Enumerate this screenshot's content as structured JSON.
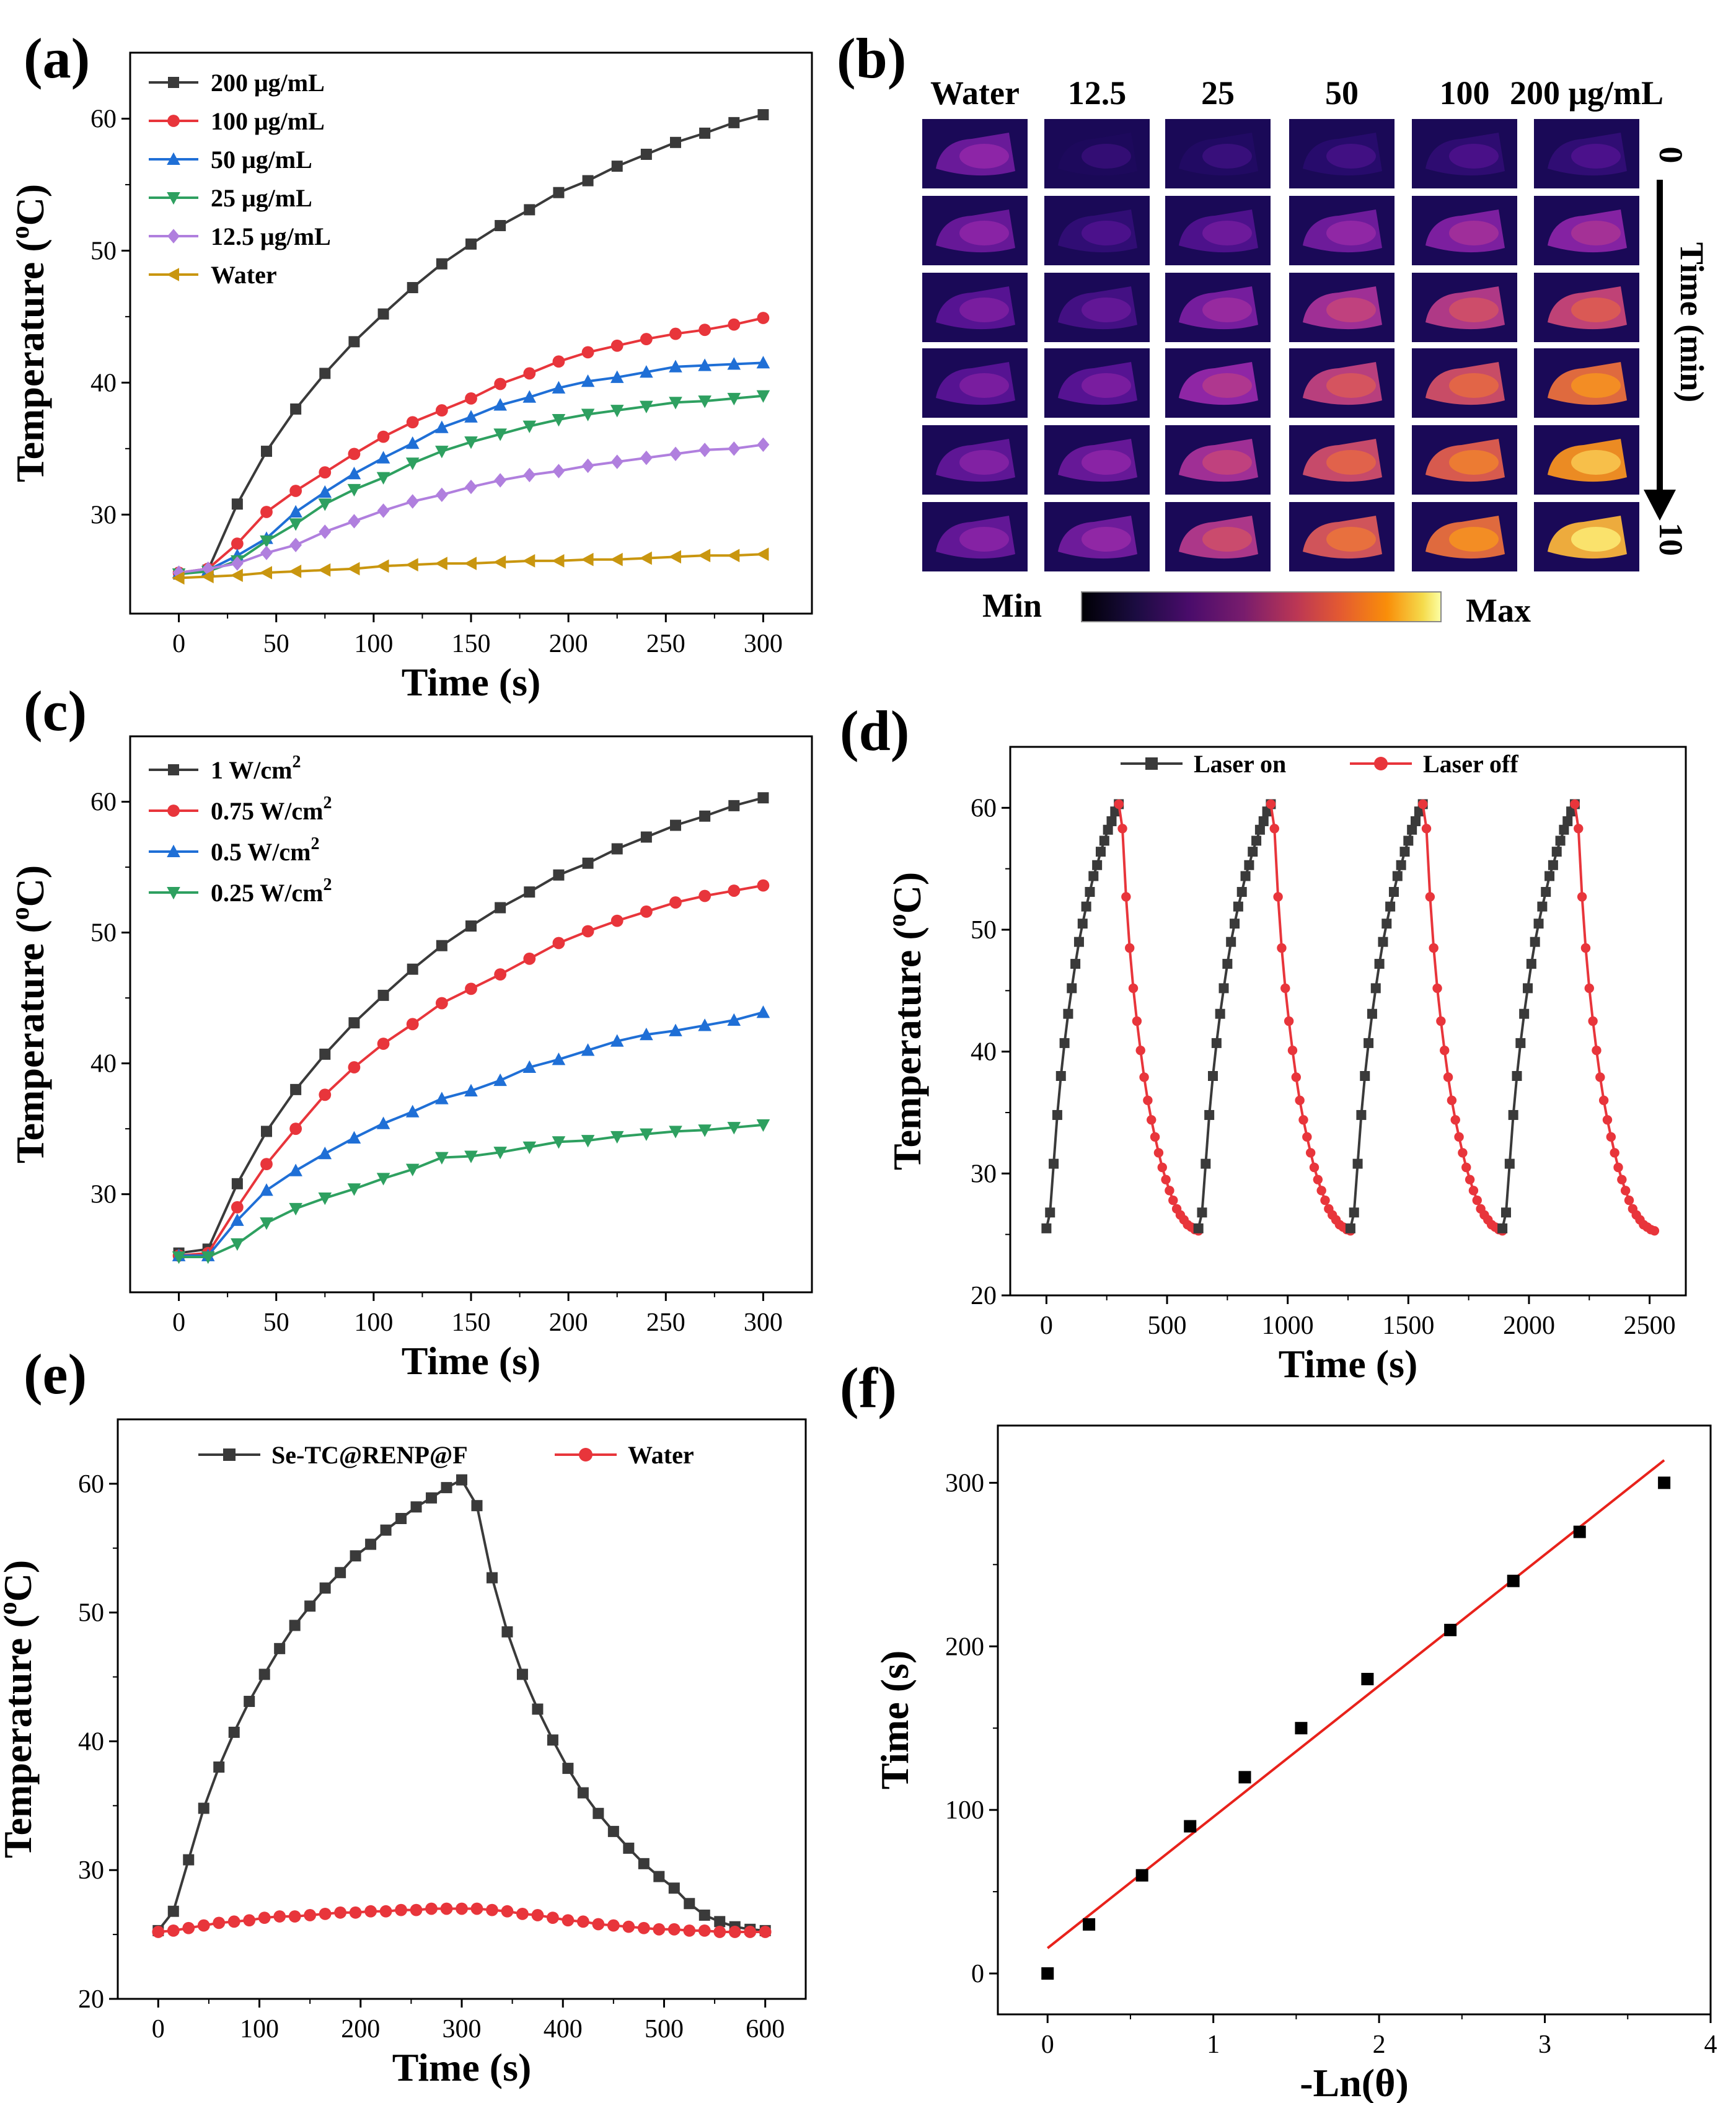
{
  "colors": {
    "black": "#3a3a3a",
    "red": "#e8353b",
    "blue": "#1f6fd6",
    "green": "#2ea060",
    "purple": "#b07fde",
    "gold": "#c9960f",
    "fit": "#e8221b"
  },
  "chart_data": [
    {
      "panel": "(a)",
      "type": "line",
      "xlabel": "Time (s)",
      "ylabel": "Temperature (",
      "ylabel_sup": "o",
      "ylabel_tail": "C)",
      "xlim": [
        -25,
        325
      ],
      "ylim": [
        22.5,
        65
      ],
      "xticks": [
        0,
        50,
        100,
        150,
        200,
        250,
        300
      ],
      "yticks": [
        30,
        40,
        50,
        60
      ],
      "x": [
        0,
        15,
        30,
        45,
        60,
        75,
        90,
        105,
        120,
        135,
        150,
        165,
        180,
        195,
        210,
        225,
        240,
        255,
        270,
        285,
        300
      ],
      "legend_position": "top-left",
      "series": [
        {
          "name": "200 μg/mL",
          "color": "#3a3a3a",
          "marker": "square",
          "values": [
            25.5,
            25.8,
            30.8,
            34.8,
            38.0,
            40.7,
            43.1,
            45.2,
            47.2,
            49.0,
            50.5,
            51.9,
            53.1,
            54.4,
            55.3,
            56.4,
            57.3,
            58.2,
            58.9,
            59.7,
            60.3
          ]
        },
        {
          "name": "100 μg/mL",
          "color": "#e8353b",
          "marker": "circle",
          "values": [
            25.6,
            25.9,
            27.8,
            30.2,
            31.8,
            33.2,
            34.6,
            35.9,
            37.0,
            37.9,
            38.8,
            39.9,
            40.7,
            41.6,
            42.3,
            42.8,
            43.3,
            43.7,
            44.0,
            44.4,
            44.9
          ]
        },
        {
          "name": "50 μg/mL",
          "color": "#1f6fd6",
          "marker": "triangle-up",
          "values": [
            25.6,
            25.8,
            26.9,
            28.2,
            30.2,
            31.7,
            33.1,
            34.3,
            35.4,
            36.6,
            37.4,
            38.3,
            38.9,
            39.6,
            40.1,
            40.4,
            40.8,
            41.2,
            41.3,
            41.4,
            41.5
          ]
        },
        {
          "name": "25 μg/mL",
          "color": "#2ea060",
          "marker": "triangle-down",
          "values": [
            25.5,
            25.7,
            26.5,
            28.0,
            29.3,
            30.8,
            31.9,
            32.8,
            33.9,
            34.8,
            35.5,
            36.1,
            36.7,
            37.2,
            37.6,
            37.9,
            38.2,
            38.5,
            38.6,
            38.8,
            39.0
          ]
        },
        {
          "name": "12.5 μg/mL",
          "color": "#b07fde",
          "marker": "diamond",
          "values": [
            25.6,
            25.9,
            26.3,
            27.1,
            27.7,
            28.7,
            29.5,
            30.3,
            31.0,
            31.5,
            32.1,
            32.6,
            33.0,
            33.3,
            33.7,
            34.0,
            34.3,
            34.6,
            34.9,
            35.0,
            35.3
          ]
        },
        {
          "name": "Water",
          "color": "#c9960f",
          "marker": "triangle-left",
          "values": [
            25.2,
            25.3,
            25.4,
            25.6,
            25.7,
            25.8,
            25.9,
            26.1,
            26.2,
            26.3,
            26.3,
            26.4,
            26.5,
            26.5,
            26.6,
            26.6,
            26.7,
            26.8,
            26.9,
            26.9,
            27.0
          ]
        }
      ]
    },
    {
      "panel": "(c)",
      "type": "line",
      "xlabel": "Time (s)",
      "ylabel": "Temperature (",
      "ylabel_sup": "o",
      "ylabel_tail": "C)",
      "xlim": [
        -25,
        325
      ],
      "ylim": [
        22.5,
        65
      ],
      "xticks": [
        0,
        50,
        100,
        150,
        200,
        250,
        300
      ],
      "yticks": [
        30,
        40,
        50,
        60
      ],
      "x": [
        0,
        15,
        30,
        45,
        60,
        75,
        90,
        105,
        120,
        135,
        150,
        165,
        180,
        195,
        210,
        225,
        240,
        255,
        270,
        285,
        300
      ],
      "legend_position": "top-left",
      "series": [
        {
          "name": "1 W/cm",
          "name_sup": "2",
          "color": "#3a3a3a",
          "marker": "square",
          "values": [
            25.5,
            25.8,
            30.8,
            34.8,
            38.0,
            40.7,
            43.1,
            45.2,
            47.2,
            49.0,
            50.5,
            51.9,
            53.1,
            54.4,
            55.3,
            56.4,
            57.3,
            58.2,
            58.9,
            59.7,
            60.3
          ]
        },
        {
          "name": "0.75 W/cm",
          "name_sup": "2",
          "color": "#e8353b",
          "marker": "circle",
          "values": [
            25.3,
            25.5,
            29.0,
            32.3,
            35.0,
            37.6,
            39.7,
            41.5,
            43.0,
            44.6,
            45.7,
            46.8,
            48.0,
            49.2,
            50.1,
            50.9,
            51.6,
            52.3,
            52.8,
            53.2,
            53.6
          ]
        },
        {
          "name": "0.5 W/cm",
          "name_sup": "2",
          "color": "#1f6fd6",
          "marker": "triangle-up",
          "values": [
            25.3,
            25.3,
            28.0,
            30.3,
            31.8,
            33.1,
            34.3,
            35.4,
            36.3,
            37.3,
            37.9,
            38.7,
            39.7,
            40.3,
            41.0,
            41.7,
            42.2,
            42.5,
            42.9,
            43.3,
            43.9
          ]
        },
        {
          "name": "0.25 W/cm",
          "name_sup": "2",
          "color": "#2ea060",
          "marker": "triangle-down",
          "values": [
            25.2,
            25.2,
            26.2,
            27.8,
            28.9,
            29.7,
            30.4,
            31.2,
            31.9,
            32.8,
            32.9,
            33.2,
            33.6,
            34.0,
            34.1,
            34.4,
            34.6,
            34.8,
            34.9,
            35.1,
            35.3
          ]
        }
      ]
    },
    {
      "panel": "(d)",
      "type": "line",
      "xlabel": "Time (s)",
      "ylabel": "Temperature (",
      "ylabel_sup": "o",
      "ylabel_tail": "C)",
      "xlim": [
        -150,
        2650
      ],
      "ylim": [
        20,
        65
      ],
      "xticks": [
        0,
        500,
        1000,
        1500,
        2000,
        2500
      ],
      "yticks": [
        20,
        30,
        40,
        50,
        60
      ],
      "legend_position": "top",
      "cycle": {
        "count": 4,
        "offsets": [
          0,
          630,
          1260,
          1890
        ],
        "heating_t": [
          0,
          15,
          30,
          45,
          60,
          75,
          90,
          105,
          120,
          135,
          150,
          165,
          180,
          195,
          210,
          225,
          240,
          255,
          270,
          285,
          300
        ],
        "heating_T": [
          25.5,
          26.8,
          30.8,
          34.8,
          38.0,
          40.7,
          43.1,
          45.2,
          47.2,
          49.0,
          50.5,
          51.9,
          53.1,
          54.4,
          55.3,
          56.4,
          57.3,
          58.2,
          58.9,
          59.7,
          60.3
        ],
        "cooling_t": [
          300,
          315,
          330,
          345,
          360,
          375,
          390,
          405,
          420,
          435,
          450,
          465,
          480,
          495,
          510,
          525,
          540,
          555,
          570,
          585,
          600,
          615,
          630
        ],
        "cooling_T": [
          60.3,
          58.3,
          52.7,
          48.5,
          45.2,
          42.5,
          40.1,
          37.9,
          36.0,
          34.4,
          33.0,
          31.7,
          30.5,
          29.5,
          28.6,
          27.8,
          27.1,
          26.6,
          26.2,
          25.8,
          25.6,
          25.4,
          25.3
        ]
      },
      "series": [
        {
          "name": "Laser on",
          "color": "#3a3a3a",
          "marker": "square"
        },
        {
          "name": "Laser off",
          "color": "#e8353b",
          "marker": "circle"
        }
      ]
    },
    {
      "panel": "(e)",
      "type": "line",
      "xlabel": "Time (s)",
      "ylabel": "Temperature (",
      "ylabel_sup": "o",
      "ylabel_tail": "C)",
      "xlim": [
        -40,
        640
      ],
      "ylim": [
        20,
        65
      ],
      "xticks": [
        0,
        100,
        200,
        300,
        400,
        500,
        600
      ],
      "yticks": [
        20,
        30,
        40,
        50,
        60
      ],
      "x": [
        0,
        15,
        30,
        45,
        60,
        75,
        90,
        105,
        120,
        135,
        150,
        165,
        180,
        195,
        210,
        225,
        240,
        255,
        270,
        285,
        300,
        315,
        330,
        345,
        360,
        375,
        390,
        405,
        420,
        435,
        450,
        465,
        480,
        495,
        510,
        525,
        540,
        555,
        570,
        585,
        600
      ],
      "legend_position": "top",
      "series": [
        {
          "name": "Se-TC@RENP@F",
          "color": "#3a3a3a",
          "marker": "square",
          "values": [
            25.3,
            26.8,
            30.8,
            34.8,
            38.0,
            40.7,
            43.1,
            45.2,
            47.2,
            49.0,
            50.5,
            51.9,
            53.1,
            54.4,
            55.3,
            56.4,
            57.3,
            58.2,
            58.9,
            59.7,
            60.3,
            58.3,
            52.7,
            48.5,
            45.2,
            42.5,
            40.1,
            37.9,
            36.0,
            34.4,
            33.0,
            31.7,
            30.5,
            29.5,
            28.6,
            27.4,
            26.5,
            26.0,
            25.6,
            25.4,
            25.3
          ]
        },
        {
          "name": "Water",
          "color": "#e8353b",
          "marker": "circle",
          "values": [
            25.2,
            25.3,
            25.5,
            25.7,
            25.9,
            26.0,
            26.1,
            26.3,
            26.4,
            26.4,
            26.5,
            26.6,
            26.7,
            26.7,
            26.8,
            26.8,
            26.9,
            26.9,
            27.0,
            27.0,
            27.0,
            27.0,
            26.9,
            26.8,
            26.6,
            26.5,
            26.3,
            26.1,
            26.0,
            25.8,
            25.7,
            25.6,
            25.5,
            25.4,
            25.4,
            25.3,
            25.3,
            25.2,
            25.2,
            25.2,
            25.2
          ]
        }
      ]
    },
    {
      "panel": "(f)",
      "type": "scatter",
      "xlabel": "-Ln(θ)",
      "ylabel": "Time (s)",
      "xlim": [
        -0.3,
        4.0
      ],
      "ylim": [
        -25,
        335
      ],
      "xticks": [
        0,
        1,
        2,
        3,
        4
      ],
      "yticks": [
        0,
        100,
        200,
        300
      ],
      "series": [
        {
          "name": "",
          "color": "#000000",
          "marker": "square",
          "x": [
            0,
            0.25,
            0.57,
            0.86,
            1.19,
            1.53,
            1.93,
            2.43,
            2.81,
            3.21,
            3.72
          ],
          "values": [
            0,
            30,
            60,
            90,
            120,
            150,
            180,
            210,
            240,
            270,
            300
          ]
        }
      ],
      "fit_line": {
        "color": "#e8221b",
        "x": [
          0,
          3.72
        ],
        "values": [
          15.5,
          313.8
        ]
      }
    }
  ],
  "heatmap_panel": {
    "panel": "(b)",
    "columns": [
      "Water",
      "12.5",
      "25",
      "50",
      "100",
      "200 μg/mL"
    ],
    "time_start": "0",
    "time_end": "10",
    "time_label": "Time (min)",
    "scale_min": "Min",
    "scale_max": "Max",
    "intensity": [
      [
        0.35,
        0.1,
        0.12,
        0.15,
        0.17,
        0.18
      ],
      [
        0.34,
        0.18,
        0.27,
        0.36,
        0.4,
        0.42
      ],
      [
        0.3,
        0.24,
        0.38,
        0.5,
        0.55,
        0.6
      ],
      [
        0.3,
        0.3,
        0.45,
        0.58,
        0.64,
        0.75
      ],
      [
        0.32,
        0.34,
        0.5,
        0.63,
        0.7,
        0.84
      ],
      [
        0.33,
        0.36,
        0.54,
        0.67,
        0.75,
        0.9
      ]
    ]
  },
  "panel_labels": {
    "a": "(a)",
    "b": "(b)",
    "c": "(c)",
    "d": "(d)",
    "e": "(e)",
    "f": "(f)"
  }
}
